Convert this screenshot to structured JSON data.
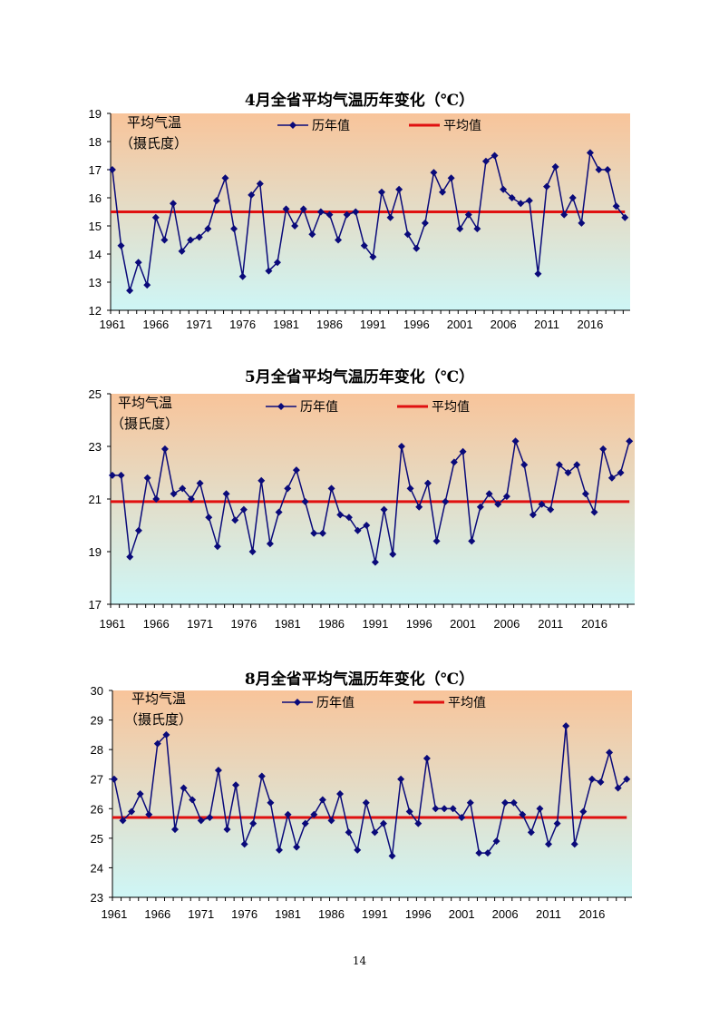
{
  "page_number": "14",
  "colors": {
    "series": "#0a0a7a",
    "average": "#e01010",
    "bg_top": "#f8c49a",
    "bg_bottom": "#cef6f6"
  },
  "legend": {
    "series_label": "历年值",
    "average_label": "平均值"
  },
  "ylabel_lines": [
    "平均气温",
    "（摄氏度）"
  ],
  "chart_data": [
    {
      "type": "line",
      "title": "4月全省平均气温历年变化（℃）",
      "ylabel": "平均气温（摄氏度）",
      "ylim": [
        12,
        19
      ],
      "yticks": [
        "12",
        "13",
        "14",
        "15",
        "16",
        "17",
        "18",
        "19"
      ],
      "xticks": [
        "1961",
        "1966",
        "1971",
        "1976",
        "1981",
        "1986",
        "1991",
        "1996",
        "2001",
        "2006",
        "2011",
        "2016"
      ],
      "x_start": 1961,
      "x_end": 2020,
      "average": 15.5,
      "series": [
        {
          "name": "历年值",
          "values": [
            17.0,
            14.3,
            12.7,
            13.7,
            12.9,
            15.3,
            14.5,
            15.8,
            14.1,
            14.5,
            14.6,
            14.9,
            15.9,
            16.7,
            14.9,
            13.2,
            16.1,
            16.5,
            13.4,
            13.7,
            15.6,
            15.0,
            15.6,
            14.7,
            15.5,
            15.4,
            14.5,
            15.4,
            15.5,
            14.3,
            13.9,
            16.2,
            15.3,
            16.3,
            14.7,
            14.2,
            15.1,
            16.9,
            16.2,
            16.7,
            14.9,
            15.4,
            14.9,
            17.3,
            17.5,
            16.3,
            16.0,
            15.8,
            15.9,
            13.3,
            16.4,
            17.1,
            15.4,
            16.0,
            15.1,
            17.6,
            17.0,
            17.0,
            15.7,
            15.3
          ]
        },
        {
          "name": "平均值",
          "values": [
            15.5
          ]
        }
      ]
    },
    {
      "type": "line",
      "title": "5月全省平均气温历年变化（℃）",
      "ylabel": "平均气温（摄氏度）",
      "ylim": [
        17,
        25
      ],
      "yticks": [
        "17",
        "19",
        "21",
        "23",
        "25"
      ],
      "xticks": [
        "1961",
        "1966",
        "1971",
        "1976",
        "1981",
        "1986",
        "1991",
        "1996",
        "2001",
        "2006",
        "2011",
        "2016"
      ],
      "x_start": 1961,
      "x_end": 2020,
      "average": 20.9,
      "series": [
        {
          "name": "历年值",
          "values": [
            21.9,
            21.9,
            18.8,
            19.8,
            21.8,
            21.0,
            22.9,
            21.2,
            21.4,
            21.0,
            21.6,
            20.3,
            19.2,
            21.2,
            20.2,
            20.6,
            19.0,
            21.7,
            19.3,
            20.5,
            21.4,
            22.1,
            20.9,
            19.7,
            19.7,
            21.4,
            20.4,
            20.3,
            19.8,
            20.0,
            18.6,
            20.6,
            18.9,
            23.0,
            21.4,
            20.7,
            21.6,
            19.4,
            20.9,
            22.4,
            22.8,
            19.4,
            20.7,
            21.2,
            20.8,
            21.1,
            23.2,
            22.3,
            20.4,
            20.8,
            20.6,
            22.3,
            22.0,
            22.3,
            21.2,
            20.5,
            22.9,
            21.8,
            22.0,
            23.2
          ]
        },
        {
          "name": "平均值",
          "values": [
            20.9
          ]
        }
      ]
    },
    {
      "type": "line",
      "title": "8月全省平均气温历年变化（℃）",
      "ylabel": "平均气温（摄氏度）",
      "ylim": [
        23,
        30
      ],
      "yticks": [
        "23",
        "24",
        "25",
        "26",
        "27",
        "28",
        "29",
        "30"
      ],
      "xticks": [
        "1961",
        "1966",
        "1971",
        "1976",
        "1981",
        "1986",
        "1991",
        "1996",
        "2001",
        "2006",
        "2011",
        "2016"
      ],
      "x_start": 1961,
      "x_end": 2020,
      "average": 25.7,
      "series": [
        {
          "name": "历年值",
          "values": [
            27.0,
            25.6,
            25.9,
            26.5,
            25.8,
            28.2,
            28.5,
            25.3,
            26.7,
            26.3,
            25.6,
            25.7,
            27.3,
            25.3,
            26.8,
            24.8,
            25.5,
            27.1,
            26.2,
            24.6,
            25.8,
            24.7,
            25.5,
            25.8,
            26.3,
            25.6,
            26.5,
            25.2,
            24.6,
            26.2,
            25.2,
            25.5,
            24.4,
            27.0,
            25.9,
            25.5,
            27.7,
            26.0,
            26.0,
            26.0,
            25.7,
            26.2,
            24.5,
            24.5,
            24.9,
            26.2,
            26.2,
            25.8,
            25.2,
            26.0,
            24.8,
            25.5,
            28.8,
            24.8,
            25.9,
            27.0,
            26.9,
            27.9,
            26.7,
            27.0
          ]
        },
        {
          "name": "平均值",
          "values": [
            25.7
          ]
        }
      ]
    }
  ]
}
